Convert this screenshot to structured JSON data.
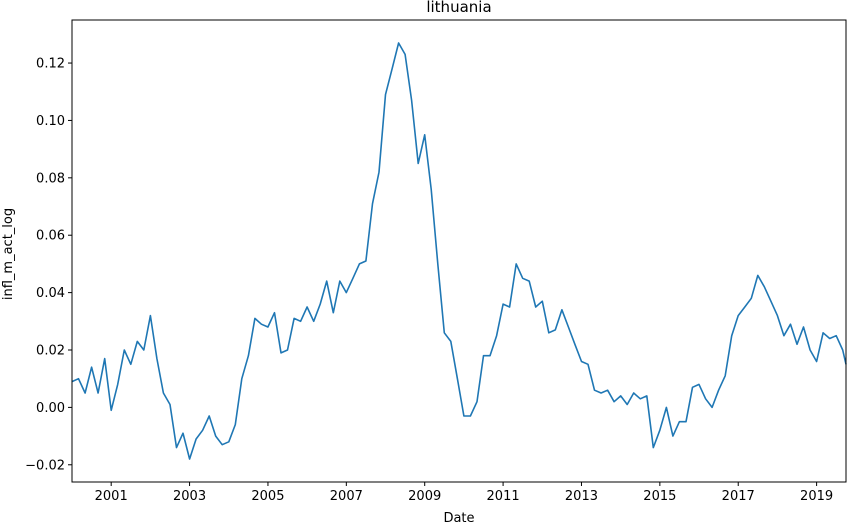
{
  "chart_data": {
    "type": "line",
    "title": "lithuania",
    "xlabel": "Date",
    "ylabel": "infl_m_act_log",
    "grid": false,
    "legend": "none",
    "xlim": [
      "2000-01",
      "2019-10"
    ],
    "ylim": [
      -0.026,
      0.135
    ],
    "x_ticks": [
      "2001",
      "2003",
      "2005",
      "2007",
      "2009",
      "2011",
      "2013",
      "2015",
      "2017",
      "2019"
    ],
    "y_ticks": [
      -0.02,
      0.0,
      0.02,
      0.04,
      0.06,
      0.08,
      0.1,
      0.12
    ],
    "y_tick_labels": [
      "−0.02",
      "0.00",
      "0.02",
      "0.04",
      "0.06",
      "0.08",
      "0.10",
      "0.12"
    ],
    "series": [
      {
        "color": "#1f77b4",
        "x": [
          "2000-01",
          "2000-03",
          "2000-05",
          "2000-07",
          "2000-09",
          "2000-11",
          "2001-01",
          "2001-03",
          "2001-05",
          "2001-07",
          "2001-09",
          "2001-11",
          "2002-01",
          "2002-03",
          "2002-05",
          "2002-07",
          "2002-09",
          "2002-11",
          "2003-01",
          "2003-03",
          "2003-05",
          "2003-07",
          "2003-09",
          "2003-11",
          "2004-01",
          "2004-03",
          "2004-05",
          "2004-07",
          "2004-09",
          "2004-11",
          "2005-01",
          "2005-03",
          "2005-05",
          "2005-07",
          "2005-09",
          "2005-11",
          "2006-01",
          "2006-03",
          "2006-05",
          "2006-07",
          "2006-09",
          "2006-11",
          "2007-01",
          "2007-03",
          "2007-05",
          "2007-07",
          "2007-09",
          "2007-11",
          "2008-01",
          "2008-03",
          "2008-05",
          "2008-07",
          "2008-09",
          "2008-11",
          "2009-01",
          "2009-03",
          "2009-05",
          "2009-07",
          "2009-09",
          "2009-11",
          "2010-01",
          "2010-03",
          "2010-05",
          "2010-07",
          "2010-09",
          "2010-11",
          "2011-01",
          "2011-03",
          "2011-05",
          "2011-07",
          "2011-09",
          "2011-11",
          "2012-01",
          "2012-03",
          "2012-05",
          "2012-07",
          "2012-09",
          "2012-11",
          "2013-01",
          "2013-03",
          "2013-05",
          "2013-07",
          "2013-09",
          "2013-11",
          "2014-01",
          "2014-03",
          "2014-05",
          "2014-07",
          "2014-09",
          "2014-11",
          "2015-01",
          "2015-03",
          "2015-05",
          "2015-07",
          "2015-09",
          "2015-11",
          "2016-01",
          "2016-03",
          "2016-05",
          "2016-07",
          "2016-09",
          "2016-11",
          "2017-01",
          "2017-03",
          "2017-05",
          "2017-07",
          "2017-09",
          "2017-11",
          "2018-01",
          "2018-03",
          "2018-05",
          "2018-07",
          "2018-09",
          "2018-11",
          "2019-01",
          "2019-03",
          "2019-05",
          "2019-07",
          "2019-09",
          "2019-10"
        ],
        "y": [
          0.009,
          0.01,
          0.005,
          0.014,
          0.005,
          0.017,
          -0.001,
          0.008,
          0.02,
          0.015,
          0.023,
          0.02,
          0.032,
          0.017,
          0.005,
          0.001,
          -0.014,
          -0.009,
          -0.018,
          -0.011,
          -0.008,
          -0.003,
          -0.01,
          -0.013,
          -0.012,
          -0.006,
          0.01,
          0.018,
          0.031,
          0.029,
          0.028,
          0.033,
          0.019,
          0.02,
          0.031,
          0.03,
          0.035,
          0.03,
          0.036,
          0.044,
          0.033,
          0.044,
          0.04,
          0.045,
          0.05,
          0.051,
          0.071,
          0.082,
          0.109,
          0.118,
          0.127,
          0.123,
          0.107,
          0.085,
          0.095,
          0.076,
          0.05,
          0.026,
          0.023,
          0.01,
          -0.003,
          -0.003,
          0.002,
          0.018,
          0.018,
          0.025,
          0.036,
          0.035,
          0.05,
          0.045,
          0.044,
          0.035,
          0.037,
          0.026,
          0.027,
          0.034,
          0.028,
          0.022,
          0.016,
          0.015,
          0.006,
          0.005,
          0.006,
          0.002,
          0.004,
          0.001,
          0.005,
          0.003,
          0.004,
          -0.014,
          -0.008,
          0.0,
          -0.01,
          -0.005,
          -0.005,
          0.007,
          0.008,
          0.003,
          0.0,
          0.006,
          0.011,
          0.025,
          0.032,
          0.035,
          0.038,
          0.046,
          0.042,
          0.037,
          0.032,
          0.025,
          0.029,
          0.022,
          0.028,
          0.02,
          0.016,
          0.026,
          0.024,
          0.025,
          0.02,
          0.015
        ]
      }
    ]
  }
}
